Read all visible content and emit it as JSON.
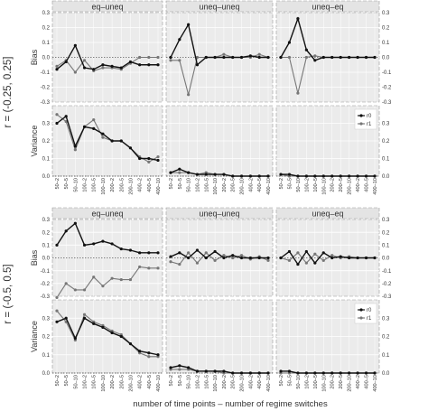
{
  "chart_data": {
    "type": "line",
    "xlabel": "number of time points – number of regime switches",
    "x_ticks": [
      "50–2",
      "50–5",
      "50–10",
      "100–2",
      "100–5",
      "100–10",
      "200–2",
      "200–5",
      "200–10",
      "400–2",
      "400–5",
      "400–10"
    ],
    "columns": [
      "eq–uneq",
      "uneq–uneq",
      "uneq–eq"
    ],
    "row_labels": [
      "Bias",
      "Variance"
    ],
    "legend": {
      "position": "right",
      "entries": [
        "r0",
        "r1"
      ]
    },
    "series_colors": {
      "r0": "#111111",
      "r1": "#777777"
    },
    "bias_axis": {
      "ylim": [
        -0.3,
        0.3
      ],
      "ticks": [
        "-0.3",
        "-0.2",
        "-0.1",
        "0.0",
        "0.1",
        "0.2",
        "0.3"
      ]
    },
    "variance_axis": {
      "ylim": [
        0,
        0.4
      ],
      "ticks": [
        "0.0",
        "0.1",
        "0.2",
        "0.3"
      ]
    },
    "blocks": [
      {
        "label": "r = (-0.25, 0.25]",
        "bias": [
          {
            "r0": [
              -0.08,
              -0.03,
              0.08,
              -0.07,
              -0.08,
              -0.05,
              -0.06,
              -0.07,
              -0.03,
              -0.05,
              -0.05,
              -0.05
            ],
            "r1": [
              -0.06,
              -0.02,
              -0.1,
              -0.02,
              -0.09,
              -0.07,
              -0.07,
              -0.08,
              -0.04,
              0.0,
              0.0,
              0.0
            ]
          },
          {
            "r0": [
              0.0,
              0.12,
              0.22,
              -0.05,
              0.0,
              0.0,
              0.0,
              0.0,
              0.0,
              0.01,
              0.0,
              0.0
            ],
            "r1": [
              -0.02,
              -0.02,
              -0.25,
              0.0,
              0.0,
              0.0,
              0.02,
              0.0,
              0.0,
              0.0,
              0.02,
              0.0
            ]
          },
          {
            "r0": [
              0.0,
              0.1,
              0.26,
              0.05,
              -0.02,
              0.0,
              0.0,
              0.0,
              0.0,
              0.0,
              0.0,
              0.0
            ],
            "r1": [
              0.0,
              0.0,
              -0.24,
              0.0,
              0.01,
              0.0,
              0.0,
              0.0,
              0.0,
              0.0,
              0.0,
              0.0
            ]
          }
        ],
        "variance": [
          {
            "r0": [
              0.3,
              0.34,
              0.17,
              0.28,
              0.27,
              0.24,
              0.2,
              0.2,
              0.16,
              0.1,
              0.1,
              0.09
            ],
            "r1": [
              0.35,
              0.31,
              0.15,
              0.28,
              0.32,
              0.22,
              0.2,
              0.2,
              0.16,
              0.11,
              0.08,
              0.11
            ]
          },
          {
            "r0": [
              0.02,
              0.04,
              0.02,
              0.01,
              0.01,
              0.01,
              0.01,
              0.0,
              0.0,
              0.0,
              0.0,
              0.0
            ],
            "r1": [
              0.02,
              0.02,
              0.02,
              0.01,
              0.02,
              0.01,
              0.01,
              0.0,
              0.0,
              0.0,
              0.0,
              0.0
            ]
          },
          {
            "r0": [
              0.01,
              0.01,
              0.0,
              0.0,
              0.0,
              0.0,
              0.0,
              0.0,
              0.0,
              0.0,
              0.0,
              0.0
            ],
            "r1": [
              0.01,
              0.0,
              0.0,
              0.0,
              0.0,
              0.0,
              0.0,
              0.0,
              0.0,
              0.0,
              0.0,
              0.0
            ]
          }
        ]
      },
      {
        "label": "r = (-0.5, 0.5]",
        "bias": [
          {
            "r0": [
              0.1,
              0.21,
              0.27,
              0.1,
              0.11,
              0.13,
              0.11,
              0.07,
              0.06,
              0.04,
              0.04,
              0.04
            ],
            "r1": [
              -0.31,
              -0.2,
              -0.25,
              -0.25,
              -0.15,
              -0.22,
              -0.16,
              -0.17,
              -0.17,
              -0.07,
              -0.08,
              -0.08
            ]
          },
          {
            "r0": [
              0.01,
              0.04,
              0.0,
              0.06,
              0.0,
              0.05,
              0.0,
              0.02,
              0.0,
              0.0,
              0.0,
              0.0
            ],
            "r1": [
              -0.03,
              -0.05,
              0.04,
              -0.04,
              0.04,
              -0.02,
              0.02,
              0.0,
              0.02,
              -0.01,
              0.01,
              -0.02
            ]
          },
          {
            "r0": [
              0.0,
              0.05,
              -0.05,
              0.05,
              -0.04,
              0.04,
              0.0,
              0.01,
              0.0,
              0.0,
              0.0,
              0.0
            ],
            "r1": [
              0.0,
              -0.02,
              0.04,
              -0.04,
              0.03,
              -0.02,
              0.02,
              0.0,
              0.01,
              0.0,
              0.0,
              0.0
            ]
          }
        ],
        "variance": [
          {
            "r0": [
              0.28,
              0.3,
              0.19,
              0.3,
              0.27,
              0.25,
              0.22,
              0.2,
              0.16,
              0.12,
              0.11,
              0.1
            ],
            "r1": [
              0.34,
              0.28,
              0.18,
              0.32,
              0.28,
              0.26,
              0.23,
              0.21,
              0.16,
              0.11,
              0.09,
              0.09
            ]
          },
          {
            "r0": [
              0.03,
              0.04,
              0.03,
              0.01,
              0.01,
              0.01,
              0.01,
              0.0,
              0.0,
              0.0,
              0.0,
              0.0
            ],
            "r1": [
              0.02,
              0.02,
              0.02,
              0.01,
              0.01,
              0.01,
              0.0,
              0.0,
              0.0,
              0.0,
              0.0,
              0.0
            ]
          },
          {
            "r0": [
              0.01,
              0.01,
              0.0,
              0.0,
              0.0,
              0.0,
              0.0,
              0.0,
              0.0,
              0.0,
              0.0,
              0.0
            ],
            "r1": [
              0.0,
              0.0,
              0.0,
              0.0,
              0.0,
              0.0,
              0.0,
              0.0,
              0.0,
              0.0,
              0.0,
              0.0
            ]
          }
        ]
      }
    ]
  }
}
